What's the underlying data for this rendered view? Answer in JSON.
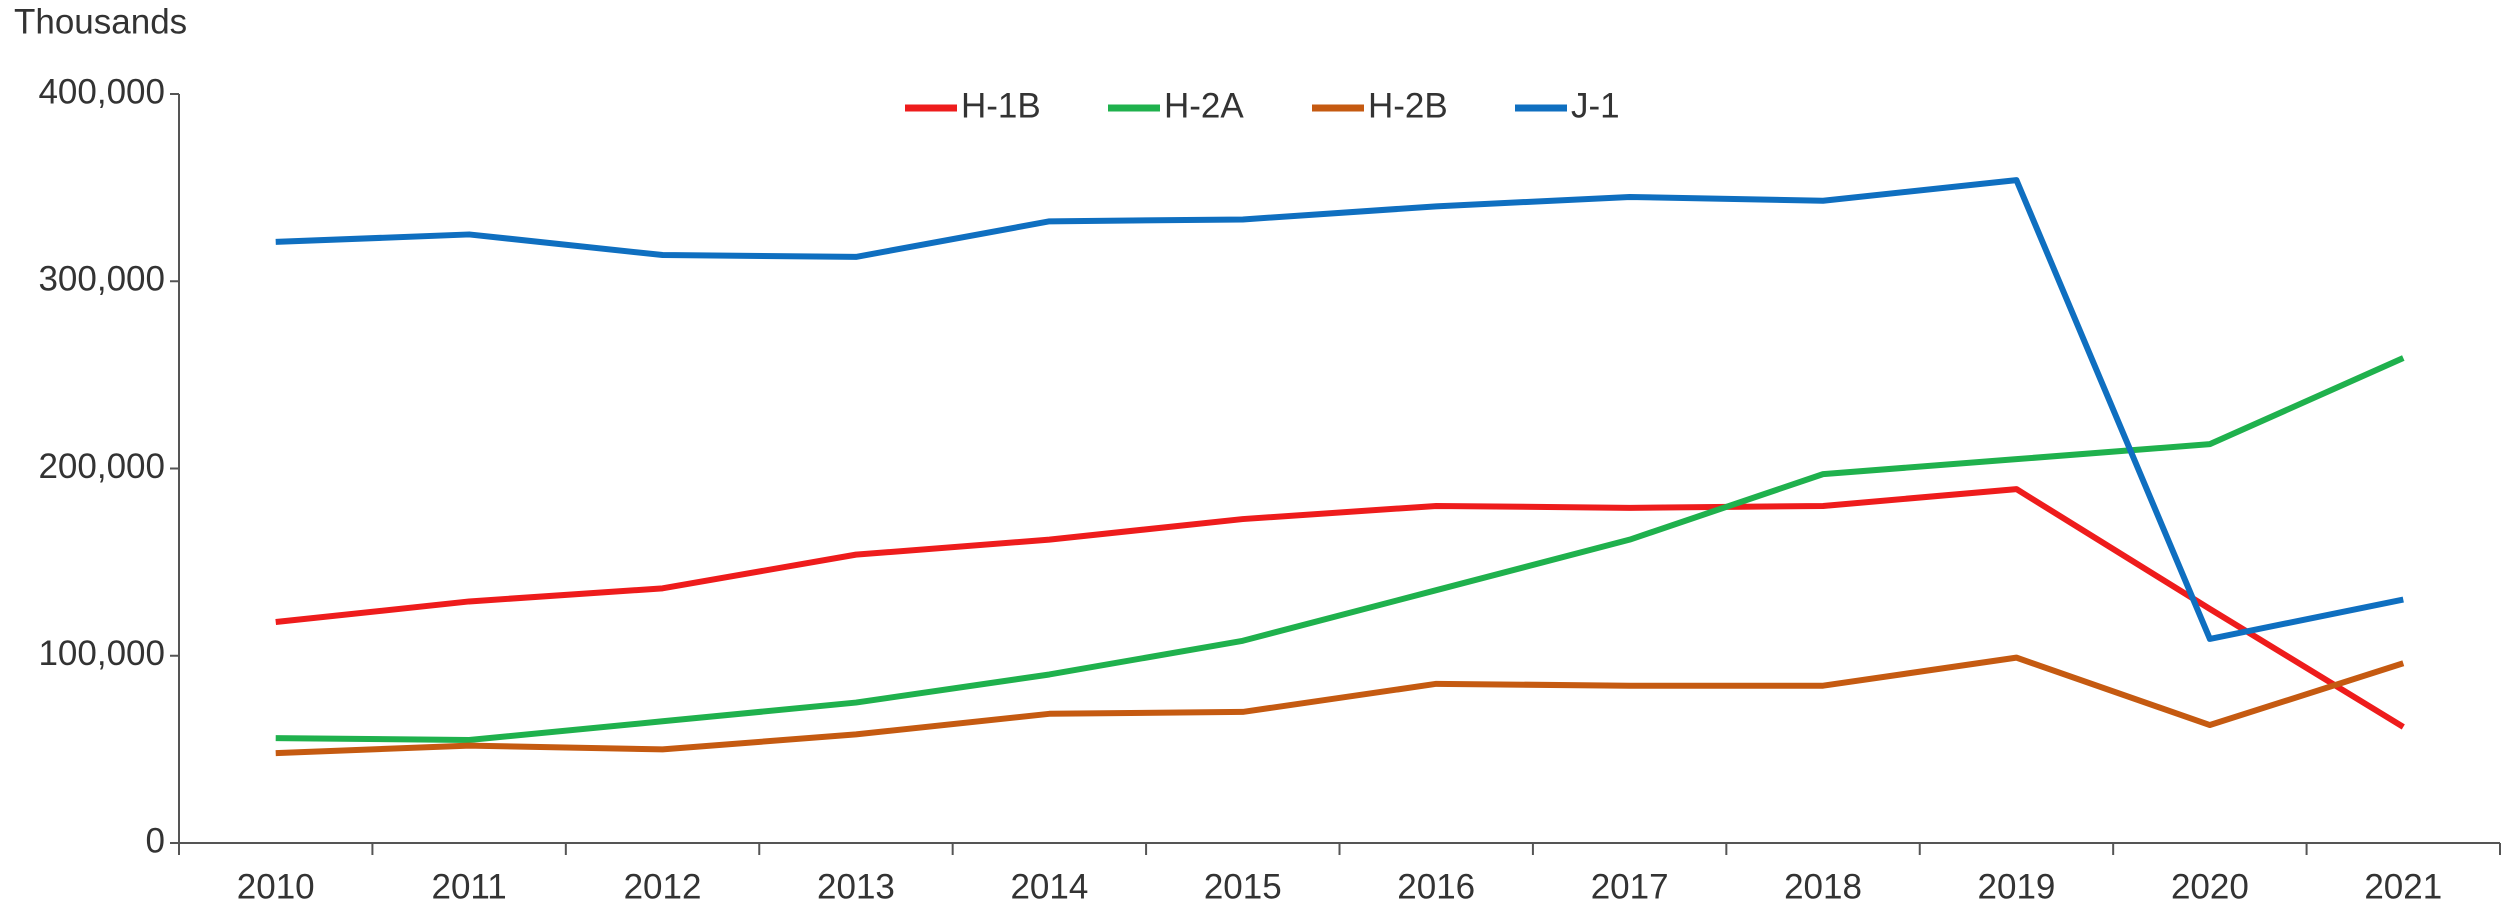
{
  "chart_data": {
    "type": "line",
    "y_axis_label": "Thousands",
    "categories": [
      "2010",
      "2011",
      "2012",
      "2013",
      "2014",
      "2015",
      "2016",
      "2017",
      "2018",
      "2019",
      "2020",
      "2021"
    ],
    "series": [
      {
        "name": "H-1B",
        "color": "#ee1c1c",
        "values": [
          118000,
          129000,
          136000,
          154000,
          162000,
          173000,
          180000,
          179000,
          180000,
          189000,
          125000,
          62000
        ]
      },
      {
        "name": "H-2A",
        "color": "#1fb14d",
        "values": [
          56000,
          55000,
          65000,
          75000,
          90000,
          108000,
          135000,
          162000,
          197000,
          205000,
          213000,
          259000
        ]
      },
      {
        "name": "H-2B",
        "color": "#c55a11",
        "values": [
          48000,
          52000,
          50000,
          58000,
          69000,
          70000,
          85000,
          84000,
          84000,
          99000,
          63000,
          96000
        ]
      },
      {
        "name": "J-1",
        "color": "#0f6fc0",
        "values": [
          321000,
          325000,
          314000,
          313000,
          332000,
          333000,
          340000,
          345000,
          343000,
          354000,
          109000,
          130000
        ]
      }
    ],
    "ylim": [
      0,
      400000
    ],
    "yticks": [
      0,
      {
        "value": 100000,
        "label": "100,000"
      },
      {
        "value": 200000,
        "label": "200,000"
      },
      {
        "value": 300000,
        "label": "300,000"
      },
      {
        "value": 400000,
        "label": "400,000"
      }
    ],
    "grid": false,
    "legend": "top"
  }
}
